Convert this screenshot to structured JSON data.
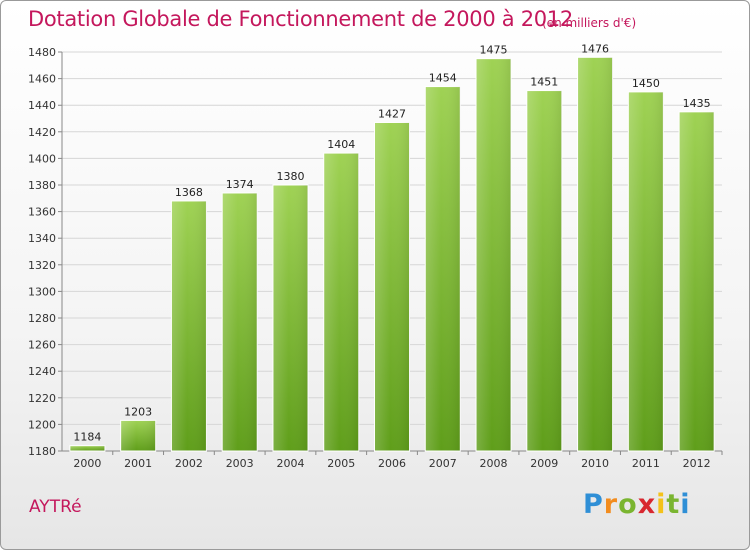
{
  "header": {
    "title": "Dotation Globale de Fonctionnement de 2000 à 2012",
    "unit": "(en milliers d'€)"
  },
  "footer": {
    "commune": "AYTRé",
    "logo_text": "Proxiti"
  },
  "colors": {
    "title": "#c4175c",
    "bar_top": "#9fd254",
    "bar_bottom": "#5f9e1a",
    "grid": "#d6d6d6"
  },
  "chart_data": {
    "type": "bar",
    "title": "Dotation Globale de Fonctionnement de 2000 à 2012",
    "subtitle": "(en milliers d'€)",
    "xlabel": "",
    "ylabel": "",
    "categories": [
      "2000",
      "2001",
      "2002",
      "2003",
      "2004",
      "2005",
      "2006",
      "2007",
      "2008",
      "2009",
      "2010",
      "2011",
      "2012"
    ],
    "values": [
      1184,
      1203,
      1368,
      1374,
      1380,
      1404,
      1427,
      1454,
      1475,
      1451,
      1476,
      1450,
      1435
    ],
    "ylim": [
      1180,
      1480
    ],
    "yticks": [
      1180,
      1200,
      1220,
      1240,
      1260,
      1280,
      1300,
      1320,
      1340,
      1360,
      1380,
      1400,
      1420,
      1440,
      1460,
      1480
    ],
    "grid": true,
    "legend": "none"
  }
}
